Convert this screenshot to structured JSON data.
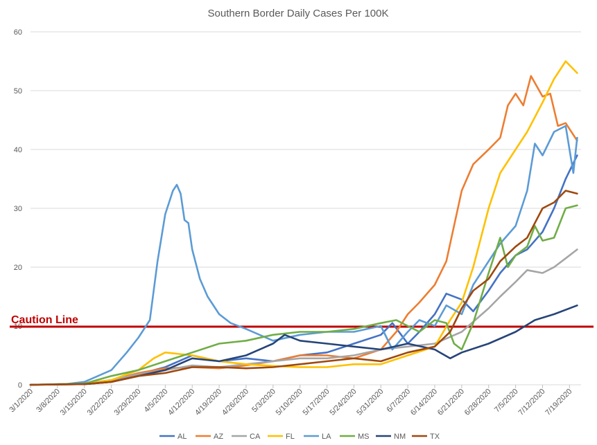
{
  "chart_data": {
    "type": "line",
    "title": "Southern Border Daily Cases Per 100K",
    "ylim": [
      0,
      60
    ],
    "yticks": [
      0,
      10,
      20,
      30,
      40,
      50,
      60
    ],
    "xlim": [
      "2020-03-01",
      "2020-07-22"
    ],
    "xtick_labels": [
      "3/1/2020",
      "3/8/2020",
      "3/15/2020",
      "3/22/2020",
      "3/29/2020",
      "4/5/2020",
      "4/12/2020",
      "4/19/2020",
      "4/26/2020",
      "5/3/2020",
      "5/10/2020",
      "5/17/2020",
      "5/24/2020",
      "5/31/2020",
      "6/7/2020",
      "6/14/2020",
      "6/21/2020",
      "6/28/2020",
      "7/5/2020",
      "7/12/2020",
      "7/19/2020"
    ],
    "xtick_dates": [
      "2020-03-01",
      "2020-03-08",
      "2020-03-15",
      "2020-03-22",
      "2020-03-29",
      "2020-04-05",
      "2020-04-12",
      "2020-04-19",
      "2020-04-26",
      "2020-05-03",
      "2020-05-10",
      "2020-05-17",
      "2020-05-24",
      "2020-05-31",
      "2020-06-07",
      "2020-06-14",
      "2020-06-21",
      "2020-06-28",
      "2020-07-05",
      "2020-07-12",
      "2020-07-19"
    ],
    "grid": true,
    "legend_position": "bottom",
    "caution_line": {
      "label": "Caution Line",
      "value": 10,
      "color": "#c00000"
    },
    "series": [
      {
        "name": "AL",
        "color": "#4472c4",
        "points": [
          [
            "2020-03-01",
            0
          ],
          [
            "2020-03-15",
            0.1
          ],
          [
            "2020-03-22",
            0.5
          ],
          [
            "2020-03-29",
            1.8
          ],
          [
            "2020-04-05",
            3.0
          ],
          [
            "2020-04-12",
            5.0
          ],
          [
            "2020-04-19",
            4.0
          ],
          [
            "2020-04-26",
            4.5
          ],
          [
            "2020-05-03",
            4.0
          ],
          [
            "2020-05-10",
            5.0
          ],
          [
            "2020-05-17",
            5.5
          ],
          [
            "2020-05-24",
            7.0
          ],
          [
            "2020-05-31",
            8.5
          ],
          [
            "2020-06-03",
            10.5
          ],
          [
            "2020-06-07",
            7.0
          ],
          [
            "2020-06-10",
            9.0
          ],
          [
            "2020-06-14",
            12.0
          ],
          [
            "2020-06-17",
            15.5
          ],
          [
            "2020-06-21",
            14.5
          ],
          [
            "2020-06-24",
            12.5
          ],
          [
            "2020-06-28",
            16.0
          ],
          [
            "2020-07-01",
            19.0
          ],
          [
            "2020-07-05",
            22.0
          ],
          [
            "2020-07-08",
            23.0
          ],
          [
            "2020-07-12",
            26.0
          ],
          [
            "2020-07-15",
            30.0
          ],
          [
            "2020-07-18",
            35.0
          ],
          [
            "2020-07-21",
            39.0
          ]
        ]
      },
      {
        "name": "AZ",
        "color": "#ed7d31",
        "points": [
          [
            "2020-03-01",
            0
          ],
          [
            "2020-03-15",
            0.2
          ],
          [
            "2020-03-22",
            0.8
          ],
          [
            "2020-03-29",
            2.0
          ],
          [
            "2020-04-05",
            2.8
          ],
          [
            "2020-04-12",
            3.0
          ],
          [
            "2020-04-19",
            2.8
          ],
          [
            "2020-04-26",
            3.3
          ],
          [
            "2020-05-03",
            4.0
          ],
          [
            "2020-05-10",
            5.0
          ],
          [
            "2020-05-17",
            5.0
          ],
          [
            "2020-05-24",
            4.5
          ],
          [
            "2020-05-31",
            6.0
          ],
          [
            "2020-06-04",
            9.0
          ],
          [
            "2020-06-07",
            12.0
          ],
          [
            "2020-06-10",
            14.0
          ],
          [
            "2020-06-14",
            17.0
          ],
          [
            "2020-06-17",
            21.0
          ],
          [
            "2020-06-21",
            33.0
          ],
          [
            "2020-06-24",
            37.5
          ],
          [
            "2020-06-28",
            40.0
          ],
          [
            "2020-07-01",
            42.0
          ],
          [
            "2020-07-03",
            47.5
          ],
          [
            "2020-07-05",
            49.5
          ],
          [
            "2020-07-07",
            47.5
          ],
          [
            "2020-07-09",
            52.5
          ],
          [
            "2020-07-12",
            49.0
          ],
          [
            "2020-07-14",
            49.5
          ],
          [
            "2020-07-16",
            44.0
          ],
          [
            "2020-07-18",
            44.5
          ],
          [
            "2020-07-21",
            41.5
          ]
        ]
      },
      {
        "name": "CA",
        "color": "#a5a5a5",
        "points": [
          [
            "2020-03-01",
            0
          ],
          [
            "2020-03-15",
            0.2
          ],
          [
            "2020-03-22",
            0.8
          ],
          [
            "2020-03-29",
            1.8
          ],
          [
            "2020-04-05",
            2.5
          ],
          [
            "2020-04-12",
            3.3
          ],
          [
            "2020-04-19",
            3.0
          ],
          [
            "2020-04-26",
            3.5
          ],
          [
            "2020-05-03",
            4.0
          ],
          [
            "2020-05-10",
            4.5
          ],
          [
            "2020-05-17",
            4.5
          ],
          [
            "2020-05-24",
            5.0
          ],
          [
            "2020-05-31",
            6.0
          ],
          [
            "2020-06-07",
            6.5
          ],
          [
            "2020-06-14",
            7.0
          ],
          [
            "2020-06-21",
            9.0
          ],
          [
            "2020-06-28",
            13.0
          ],
          [
            "2020-07-01",
            15.0
          ],
          [
            "2020-07-05",
            17.5
          ],
          [
            "2020-07-08",
            19.5
          ],
          [
            "2020-07-12",
            19.0
          ],
          [
            "2020-07-15",
            20.0
          ],
          [
            "2020-07-18",
            21.5
          ],
          [
            "2020-07-21",
            23.0
          ]
        ]
      },
      {
        "name": "FL",
        "color": "#ffc000",
        "points": [
          [
            "2020-03-01",
            0
          ],
          [
            "2020-03-15",
            0.1
          ],
          [
            "2020-03-22",
            0.8
          ],
          [
            "2020-03-29",
            2.5
          ],
          [
            "2020-04-02",
            4.5
          ],
          [
            "2020-04-05",
            5.5
          ],
          [
            "2020-04-12",
            5.0
          ],
          [
            "2020-04-19",
            4.0
          ],
          [
            "2020-04-26",
            3.5
          ],
          [
            "2020-05-03",
            3.2
          ],
          [
            "2020-05-10",
            3.0
          ],
          [
            "2020-05-17",
            3.0
          ],
          [
            "2020-05-24",
            3.5
          ],
          [
            "2020-05-31",
            3.5
          ],
          [
            "2020-06-07",
            5.0
          ],
          [
            "2020-06-14",
            6.5
          ],
          [
            "2020-06-18",
            11.0
          ],
          [
            "2020-06-21",
            14.0
          ],
          [
            "2020-06-24",
            20.0
          ],
          [
            "2020-06-28",
            30.0
          ],
          [
            "2020-07-01",
            36.0
          ],
          [
            "2020-07-05",
            40.0
          ],
          [
            "2020-07-08",
            43.0
          ],
          [
            "2020-07-12",
            48.0
          ],
          [
            "2020-07-15",
            52.0
          ],
          [
            "2020-07-18",
            55.0
          ],
          [
            "2020-07-21",
            53.0
          ]
        ]
      },
      {
        "name": "LA",
        "color": "#5b9bd5",
        "points": [
          [
            "2020-03-01",
            0
          ],
          [
            "2020-03-10",
            0.1
          ],
          [
            "2020-03-15",
            0.5
          ],
          [
            "2020-03-22",
            2.5
          ],
          [
            "2020-03-26",
            5.5
          ],
          [
            "2020-03-29",
            8.0
          ],
          [
            "2020-04-01",
            11.0
          ],
          [
            "2020-04-03",
            21.0
          ],
          [
            "2020-04-05",
            29.0
          ],
          [
            "2020-04-07",
            33.0
          ],
          [
            "2020-04-08",
            34.0
          ],
          [
            "2020-04-09",
            32.5
          ],
          [
            "2020-04-10",
            28.0
          ],
          [
            "2020-04-11",
            27.5
          ],
          [
            "2020-04-12",
            23.0
          ],
          [
            "2020-04-14",
            18.0
          ],
          [
            "2020-04-16",
            15.0
          ],
          [
            "2020-04-19",
            12.0
          ],
          [
            "2020-04-22",
            10.5
          ],
          [
            "2020-04-26",
            9.5
          ],
          [
            "2020-05-03",
            7.5
          ],
          [
            "2020-05-10",
            8.5
          ],
          [
            "2020-05-17",
            9.0
          ],
          [
            "2020-05-24",
            9.0
          ],
          [
            "2020-05-31",
            10.0
          ],
          [
            "2020-06-03",
            6.0
          ],
          [
            "2020-06-07",
            9.0
          ],
          [
            "2020-06-10",
            11.0
          ],
          [
            "2020-06-14",
            10.0
          ],
          [
            "2020-06-17",
            13.5
          ],
          [
            "2020-06-21",
            12.0
          ],
          [
            "2020-06-24",
            17.0
          ],
          [
            "2020-06-28",
            21.0
          ],
          [
            "2020-07-01",
            24.0
          ],
          [
            "2020-07-05",
            27.0
          ],
          [
            "2020-07-08",
            33.0
          ],
          [
            "2020-07-10",
            41.0
          ],
          [
            "2020-07-12",
            39.0
          ],
          [
            "2020-07-15",
            43.0
          ],
          [
            "2020-07-18",
            44.0
          ],
          [
            "2020-07-20",
            36.0
          ],
          [
            "2020-07-21",
            42.0
          ]
        ]
      },
      {
        "name": "MS",
        "color": "#70ad47",
        "points": [
          [
            "2020-03-01",
            0
          ],
          [
            "2020-03-15",
            0.2
          ],
          [
            "2020-03-22",
            1.5
          ],
          [
            "2020-03-29",
            2.5
          ],
          [
            "2020-04-05",
            4.0
          ],
          [
            "2020-04-12",
            5.5
          ],
          [
            "2020-04-19",
            7.0
          ],
          [
            "2020-04-26",
            7.5
          ],
          [
            "2020-05-03",
            8.5
          ],
          [
            "2020-05-10",
            9.0
          ],
          [
            "2020-05-17",
            9.0
          ],
          [
            "2020-05-24",
            9.5
          ],
          [
            "2020-05-31",
            10.5
          ],
          [
            "2020-06-04",
            11.0
          ],
          [
            "2020-06-07",
            10.0
          ],
          [
            "2020-06-10",
            9.0
          ],
          [
            "2020-06-14",
            11.0
          ],
          [
            "2020-06-17",
            10.5
          ],
          [
            "2020-06-19",
            7.0
          ],
          [
            "2020-06-21",
            6.0
          ],
          [
            "2020-06-24",
            10.5
          ],
          [
            "2020-06-28",
            19.0
          ],
          [
            "2020-07-01",
            25.0
          ],
          [
            "2020-07-03",
            20.0
          ],
          [
            "2020-07-05",
            22.0
          ],
          [
            "2020-07-08",
            23.5
          ],
          [
            "2020-07-10",
            27.0
          ],
          [
            "2020-07-12",
            24.5
          ],
          [
            "2020-07-15",
            25.0
          ],
          [
            "2020-07-18",
            30.0
          ],
          [
            "2020-07-21",
            30.5
          ]
        ]
      },
      {
        "name": "NM",
        "color": "#264478",
        "points": [
          [
            "2020-03-01",
            0
          ],
          [
            "2020-03-15",
            0.1
          ],
          [
            "2020-03-22",
            0.5
          ],
          [
            "2020-03-29",
            1.5
          ],
          [
            "2020-04-05",
            2.5
          ],
          [
            "2020-04-12",
            4.5
          ],
          [
            "2020-04-19",
            4.0
          ],
          [
            "2020-04-26",
            5.0
          ],
          [
            "2020-05-03",
            7.0
          ],
          [
            "2020-05-06",
            8.5
          ],
          [
            "2020-05-10",
            7.5
          ],
          [
            "2020-05-17",
            7.0
          ],
          [
            "2020-05-24",
            6.5
          ],
          [
            "2020-05-31",
            6.0
          ],
          [
            "2020-06-07",
            7.0
          ],
          [
            "2020-06-14",
            6.0
          ],
          [
            "2020-06-18",
            4.5
          ],
          [
            "2020-06-21",
            5.5
          ],
          [
            "2020-06-28",
            7.0
          ],
          [
            "2020-07-05",
            9.0
          ],
          [
            "2020-07-10",
            11.0
          ],
          [
            "2020-07-15",
            12.0
          ],
          [
            "2020-07-21",
            13.5
          ]
        ]
      },
      {
        "name": "TX",
        "color": "#9e480e",
        "points": [
          [
            "2020-03-01",
            0
          ],
          [
            "2020-03-15",
            0.1
          ],
          [
            "2020-03-22",
            0.5
          ],
          [
            "2020-03-29",
            1.5
          ],
          [
            "2020-04-05",
            2.0
          ],
          [
            "2020-04-12",
            3.0
          ],
          [
            "2020-04-19",
            3.0
          ],
          [
            "2020-04-26",
            2.8
          ],
          [
            "2020-05-03",
            3.0
          ],
          [
            "2020-05-10",
            3.5
          ],
          [
            "2020-05-17",
            4.0
          ],
          [
            "2020-05-24",
            4.5
          ],
          [
            "2020-05-31",
            4.0
          ],
          [
            "2020-06-07",
            5.5
          ],
          [
            "2020-06-14",
            6.5
          ],
          [
            "2020-06-18",
            9.0
          ],
          [
            "2020-06-21",
            13.0
          ],
          [
            "2020-06-24",
            16.0
          ],
          [
            "2020-06-28",
            18.0
          ],
          [
            "2020-07-01",
            21.0
          ],
          [
            "2020-07-05",
            23.5
          ],
          [
            "2020-07-08",
            25.0
          ],
          [
            "2020-07-12",
            30.0
          ],
          [
            "2020-07-15",
            31.0
          ],
          [
            "2020-07-18",
            33.0
          ],
          [
            "2020-07-21",
            32.5
          ]
        ]
      }
    ]
  }
}
